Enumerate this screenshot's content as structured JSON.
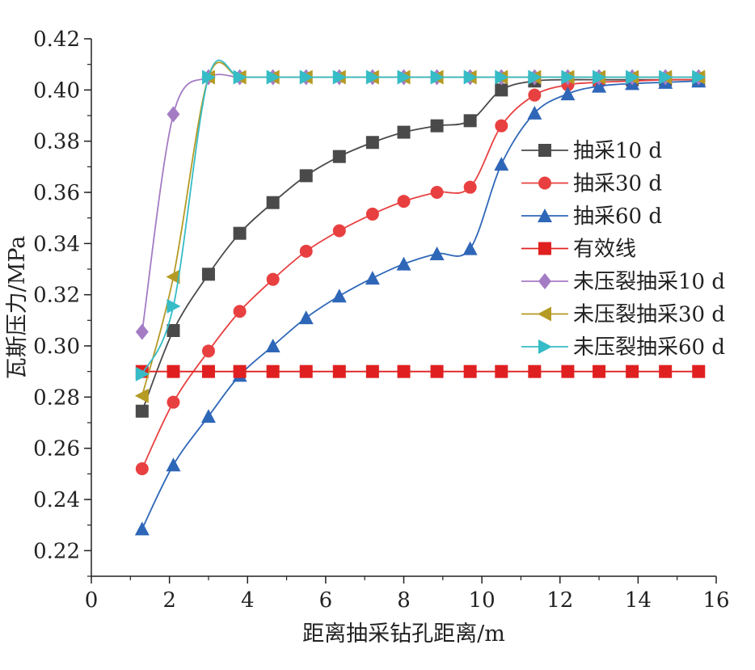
{
  "chart_data": {
    "type": "line",
    "xlabel": "距离抽采钻孔距离/m",
    "ylabel": "瓦斯压力/MPa",
    "xlim": [
      0,
      16
    ],
    "ylim": [
      0.21,
      0.42
    ],
    "xticks": [
      0,
      2,
      4,
      6,
      8,
      10,
      12,
      14,
      16
    ],
    "yticks": [
      0.22,
      0.24,
      0.26,
      0.28,
      0.3,
      0.32,
      0.34,
      0.36,
      0.38,
      0.4,
      0.42
    ],
    "xtick_labels": [
      "0",
      "2",
      "4",
      "6",
      "8",
      "10",
      "12",
      "14",
      "16"
    ],
    "ytick_labels": [
      "0.22",
      "0.24",
      "0.26",
      "0.28",
      "0.30",
      "0.32",
      "0.34",
      "0.36",
      "0.38",
      "0.40",
      "0.42"
    ],
    "grid": false,
    "legend_position": "right",
    "series": [
      {
        "name": "抽采10 d",
        "color": "#4a4a4a",
        "marker": "square",
        "x": [
          1.3,
          2.1,
          3.0,
          3.8,
          4.65,
          5.5,
          6.35,
          7.2,
          8.0,
          8.85,
          9.7,
          10.5,
          11.35,
          12.2,
          13.0,
          13.85,
          14.7,
          15.55
        ],
        "y": [
          0.2745,
          0.306,
          0.328,
          0.344,
          0.356,
          0.3665,
          0.374,
          0.3795,
          0.3835,
          0.386,
          0.388,
          0.4,
          0.4035,
          0.404,
          0.404,
          0.404,
          0.404,
          0.404
        ]
      },
      {
        "name": "抽采30 d",
        "color": "#e84040",
        "marker": "circle",
        "x": [
          1.3,
          2.1,
          3.0,
          3.8,
          4.65,
          5.5,
          6.35,
          7.2,
          8.0,
          8.85,
          9.7,
          10.5,
          11.35,
          12.2,
          13.0,
          13.85,
          14.7,
          15.55
        ],
        "y": [
          0.252,
          0.278,
          0.298,
          0.3135,
          0.326,
          0.337,
          0.345,
          0.3515,
          0.3565,
          0.36,
          0.362,
          0.386,
          0.398,
          0.402,
          0.403,
          0.4035,
          0.404,
          0.404
        ]
      },
      {
        "name": "抽采60 d",
        "color": "#2f67b8",
        "marker": "triangle-up",
        "x": [
          1.3,
          2.1,
          3.0,
          3.8,
          4.65,
          5.5,
          6.35,
          7.2,
          8.0,
          8.85,
          9.7,
          10.5,
          11.35,
          12.2,
          13.0,
          13.85,
          14.7,
          15.55
        ],
        "y": [
          0.2285,
          0.2535,
          0.2725,
          0.2885,
          0.3,
          0.311,
          0.3195,
          0.3265,
          0.332,
          0.336,
          0.338,
          0.371,
          0.391,
          0.3985,
          0.4015,
          0.4025,
          0.403,
          0.4035
        ]
      },
      {
        "name": "有效线",
        "color": "#e02020",
        "marker": "square",
        "x": [
          1.3,
          2.1,
          3.0,
          3.8,
          4.65,
          5.5,
          6.35,
          7.2,
          8.0,
          8.85,
          9.7,
          10.5,
          11.35,
          12.2,
          13.0,
          13.85,
          14.7,
          15.55
        ],
        "y": [
          0.29,
          0.29,
          0.29,
          0.29,
          0.29,
          0.29,
          0.29,
          0.29,
          0.29,
          0.29,
          0.29,
          0.29,
          0.29,
          0.29,
          0.29,
          0.29,
          0.29,
          0.29
        ]
      },
      {
        "name": "未压裂抽采10 d",
        "color": "#a47cc4",
        "marker": "diamond",
        "x": [
          1.3,
          2.1,
          3.0,
          3.8,
          4.65,
          5.5,
          6.35,
          7.2,
          8.0,
          8.85,
          9.7,
          10.5,
          11.35,
          12.2,
          13.0,
          13.85,
          14.7,
          15.55
        ],
        "y": [
          0.3055,
          0.3905,
          0.405,
          0.405,
          0.405,
          0.405,
          0.405,
          0.405,
          0.405,
          0.405,
          0.405,
          0.405,
          0.405,
          0.405,
          0.405,
          0.405,
          0.405,
          0.405
        ]
      },
      {
        "name": "未压裂抽采30 d",
        "color": "#b59a24",
        "marker": "triangle-left",
        "x": [
          1.3,
          2.1,
          3.0,
          3.8,
          4.65,
          5.5,
          6.35,
          7.2,
          8.0,
          8.85,
          9.7,
          10.5,
          11.35,
          12.2,
          13.0,
          13.85,
          14.7,
          15.55
        ],
        "y": [
          0.2805,
          0.327,
          0.405,
          0.405,
          0.405,
          0.405,
          0.405,
          0.405,
          0.405,
          0.405,
          0.405,
          0.405,
          0.405,
          0.405,
          0.405,
          0.405,
          0.405,
          0.405
        ]
      },
      {
        "name": "未压裂抽采60 d",
        "color": "#36bcc6",
        "marker": "triangle-right",
        "x": [
          1.3,
          2.1,
          3.0,
          3.8,
          4.65,
          5.5,
          6.35,
          7.2,
          8.0,
          8.85,
          9.7,
          10.5,
          11.35,
          12.2,
          13.0,
          13.85,
          14.7,
          15.55
        ],
        "y": [
          0.289,
          0.3155,
          0.405,
          0.405,
          0.405,
          0.405,
          0.405,
          0.405,
          0.405,
          0.405,
          0.405,
          0.405,
          0.405,
          0.405,
          0.405,
          0.405,
          0.405,
          0.405
        ]
      }
    ]
  }
}
